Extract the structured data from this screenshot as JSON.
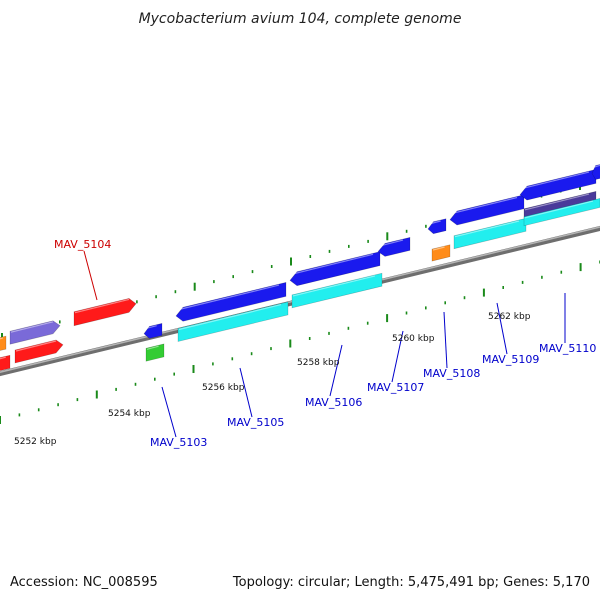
{
  "title": "Mycobacterium avium 104, complete genome",
  "footer": {
    "accession": "Accession: NC_008595",
    "summary": "Topology: circular; Length: 5,475,491 bp; Genes: 5,170"
  },
  "scale_labels": [
    "5252 kbp",
    "5254 kbp",
    "5256 kbp",
    "5258 kbp",
    "5260 kbp",
    "5262 kbp"
  ],
  "gene_labels": [
    {
      "name": "MAV_5104",
      "color": "#cc0000"
    },
    {
      "name": "MAV_5103",
      "color": "#0000cc"
    },
    {
      "name": "MAV_5105",
      "color": "#0000cc"
    },
    {
      "name": "MAV_5106",
      "color": "#0000cc"
    },
    {
      "name": "MAV_5107",
      "color": "#0000cc"
    },
    {
      "name": "MAV_5108",
      "color": "#0000cc"
    },
    {
      "name": "MAV_5109",
      "color": "#0000cc"
    },
    {
      "name": "MAV_5110",
      "color": "#0000cc"
    }
  ],
  "colors": {
    "backbone": "#8c8c8c",
    "ticks": "#1a8a1a",
    "cds_red": "#ff1a1a",
    "cds_blue": "#1a1aee",
    "cds_cyan": "#22eeee",
    "cds_purple": "#7a6ad8",
    "cds_dark_purple": "#4a3a9a",
    "cds_orange": "#ff8c1a",
    "cds_green": "#33cc33"
  }
}
